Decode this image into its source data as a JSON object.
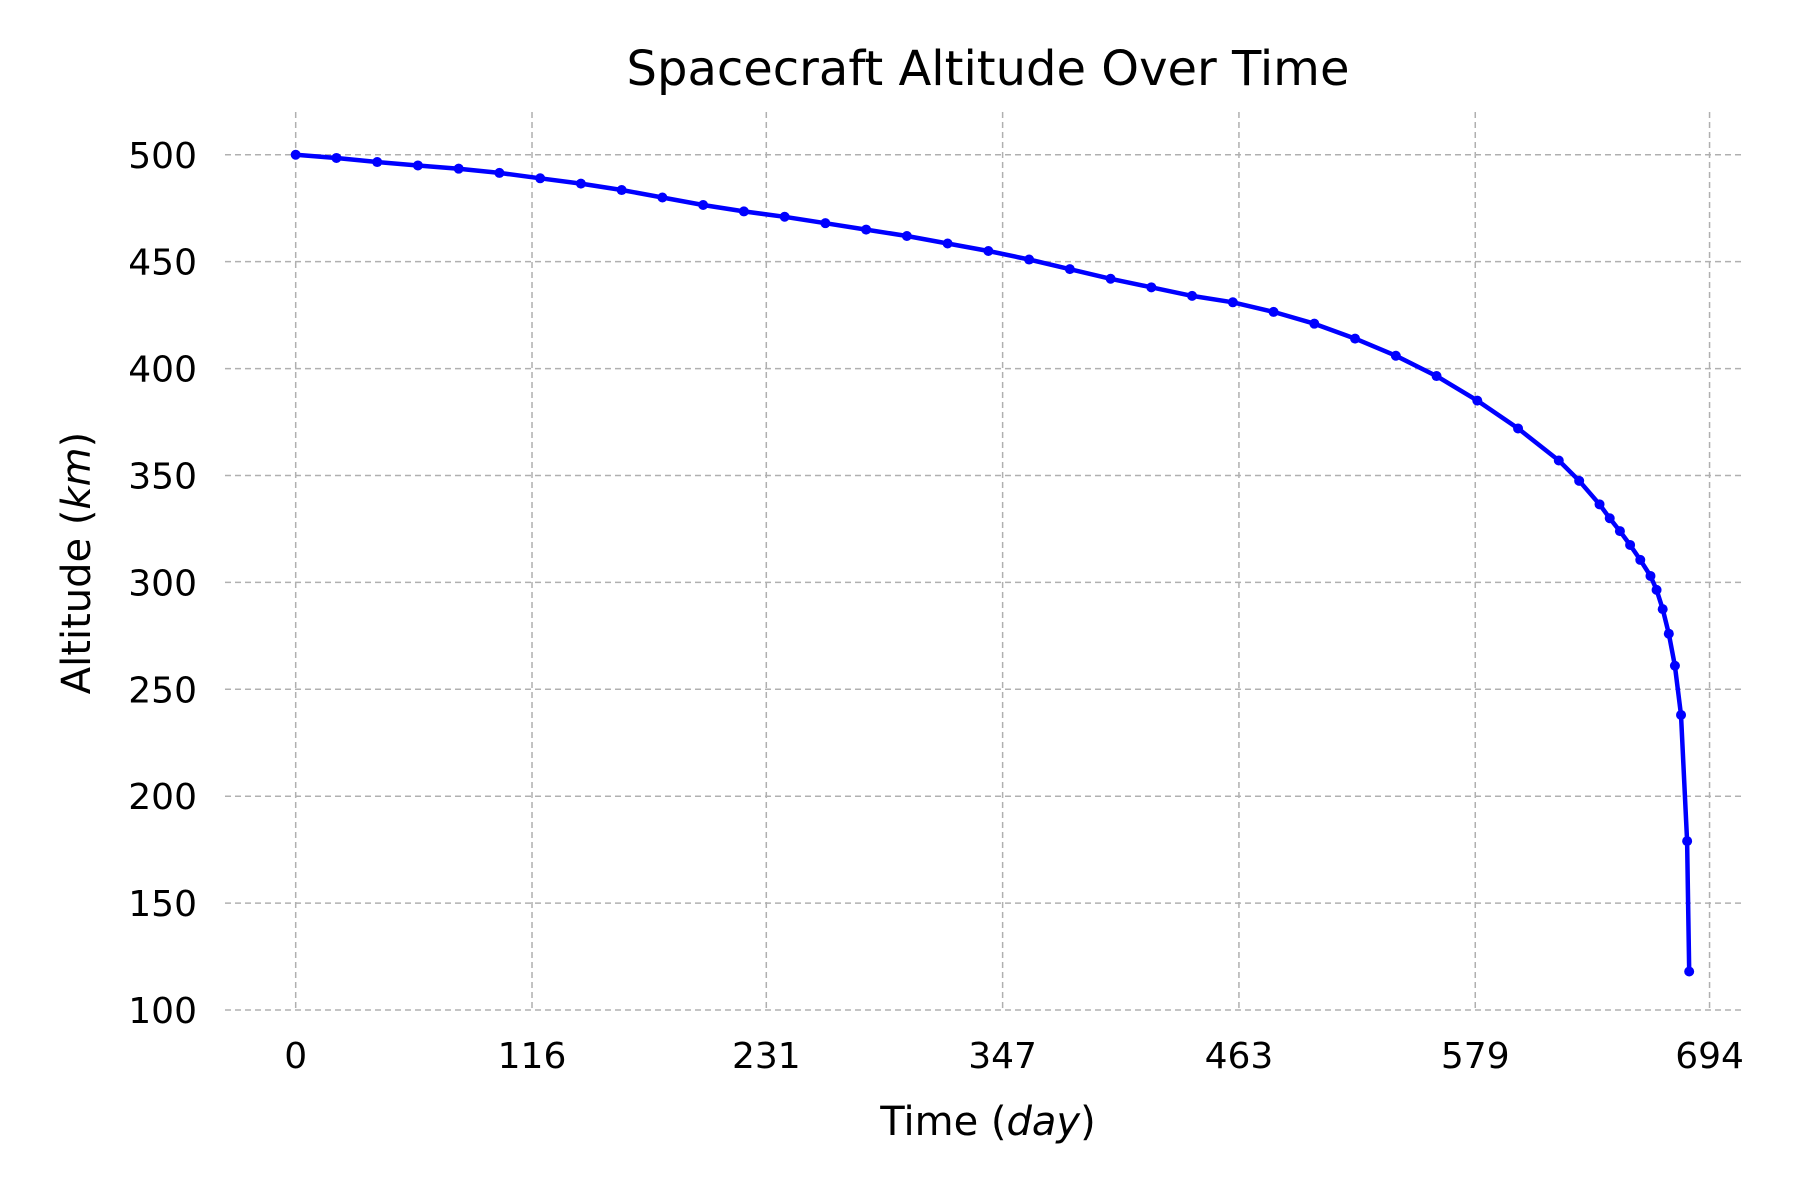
{
  "chart_data": {
    "type": "line",
    "title": "Spacecraft Altitude Over Time",
    "xlabel_prefix": "Time (",
    "xlabel_unit": "day",
    "xlabel_suffix": ")",
    "ylabel_prefix": "Altitude (",
    "ylabel_unit": "km",
    "ylabel_suffix": ")",
    "xlim": [
      -34.7,
      711.4
    ],
    "ylim": [
      100,
      520
    ],
    "x_ticks": [
      0,
      116,
      231,
      347,
      463,
      579,
      694
    ],
    "x_tick_labels": [
      "0",
      "116",
      "231",
      "347",
      "463",
      "579",
      "694"
    ],
    "y_ticks": [
      100,
      150,
      200,
      250,
      300,
      350,
      400,
      450,
      500
    ],
    "y_tick_labels": [
      "100",
      "150",
      "200",
      "250",
      "300",
      "350",
      "400",
      "450",
      "500"
    ],
    "grid": true,
    "series_color": "#0000ff",
    "grid_color": "#b0b0b0",
    "series": [
      {
        "name": "Altitude",
        "points": [
          [
            0,
            500
          ],
          [
            20,
            498.5
          ],
          [
            40,
            496.6
          ],
          [
            60,
            495
          ],
          [
            80,
            493.5
          ],
          [
            100,
            491.5
          ],
          [
            120,
            489
          ],
          [
            140,
            486.5
          ],
          [
            160,
            483.5
          ],
          [
            180,
            480
          ],
          [
            200,
            476.5
          ],
          [
            220,
            473.5
          ],
          [
            240,
            471
          ],
          [
            260,
            468
          ],
          [
            280,
            465
          ],
          [
            300,
            462
          ],
          [
            320,
            458.5
          ],
          [
            340,
            455
          ],
          [
            360,
            451
          ],
          [
            380,
            446.5
          ],
          [
            400,
            442
          ],
          [
            420,
            438
          ],
          [
            440,
            434
          ],
          [
            460,
            431
          ],
          [
            480,
            426.5
          ],
          [
            500,
            421
          ],
          [
            520,
            414
          ],
          [
            540,
            406
          ],
          [
            560,
            396.5
          ],
          [
            580,
            385
          ],
          [
            600,
            372
          ],
          [
            620,
            357
          ],
          [
            630,
            347.5
          ],
          [
            640,
            336.5
          ],
          [
            645,
            330
          ],
          [
            650,
            324
          ],
          [
            655,
            317.5
          ],
          [
            660,
            310.5
          ],
          [
            665,
            303
          ],
          [
            668,
            296.5
          ],
          [
            671,
            287.5
          ],
          [
            674,
            276
          ],
          [
            677,
            261
          ],
          [
            680,
            238
          ],
          [
            683,
            179
          ],
          [
            684,
            118
          ]
        ]
      }
    ]
  }
}
